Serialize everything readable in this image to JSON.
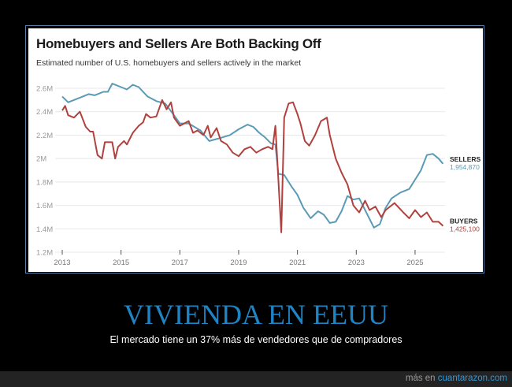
{
  "chart_data": {
    "type": "line",
    "title": "Homebuyers and Sellers Are Both Backing Off",
    "subtitle": "Estimated number of U.S. homebuyers and sellers actively in the market",
    "xlabel": "",
    "ylabel": "",
    "xlim": [
      2013,
      2026
    ],
    "ylim": [
      1200000,
      2600000
    ],
    "x_ticks": [
      2013,
      2015,
      2017,
      2019,
      2021,
      2023,
      2025
    ],
    "x_tick_labels": [
      "2013",
      "2015",
      "2017",
      "2019",
      "2021",
      "2023",
      "2025"
    ],
    "y_ticks": [
      1200000,
      1400000,
      1600000,
      1800000,
      2000000,
      2200000,
      2400000,
      2600000
    ],
    "y_tick_labels": [
      "1.2M",
      "1.4M",
      "1.6M",
      "1.8M",
      "2M",
      "2.2M",
      "2.4M",
      "2.6M"
    ],
    "grid": true,
    "series": [
      {
        "name": "SELLERS",
        "end_label": "1,954,870",
        "color": "#5b9ab5",
        "points": [
          [
            2013.0,
            2.53
          ],
          [
            2013.2,
            2.48
          ],
          [
            2013.5,
            2.51
          ],
          [
            2013.9,
            2.55
          ],
          [
            2014.1,
            2.54
          ],
          [
            2014.4,
            2.57
          ],
          [
            2014.55,
            2.57
          ],
          [
            2014.7,
            2.64
          ],
          [
            2015.0,
            2.61
          ],
          [
            2015.2,
            2.59
          ],
          [
            2015.4,
            2.63
          ],
          [
            2015.6,
            2.61
          ],
          [
            2015.9,
            2.53
          ],
          [
            2016.2,
            2.49
          ],
          [
            2016.5,
            2.47
          ],
          [
            2016.8,
            2.37
          ],
          [
            2017.0,
            2.3
          ],
          [
            2017.3,
            2.3
          ],
          [
            2017.7,
            2.24
          ],
          [
            2018.0,
            2.15
          ],
          [
            2018.3,
            2.17
          ],
          [
            2018.7,
            2.2
          ],
          [
            2019.0,
            2.25
          ],
          [
            2019.3,
            2.29
          ],
          [
            2019.5,
            2.27
          ],
          [
            2019.7,
            2.22
          ],
          [
            2019.9,
            2.18
          ],
          [
            2020.1,
            2.13
          ],
          [
            2020.25,
            2.12
          ],
          [
            2020.35,
            1.87
          ],
          [
            2020.55,
            1.86
          ],
          [
            2020.8,
            1.76
          ],
          [
            2021.0,
            1.69
          ],
          [
            2021.2,
            1.58
          ],
          [
            2021.45,
            1.49
          ],
          [
            2021.7,
            1.55
          ],
          [
            2021.9,
            1.52
          ],
          [
            2022.1,
            1.45
          ],
          [
            2022.3,
            1.46
          ],
          [
            2022.5,
            1.55
          ],
          [
            2022.7,
            1.68
          ],
          [
            2022.9,
            1.65
          ],
          [
            2023.1,
            1.66
          ],
          [
            2023.3,
            1.56
          ],
          [
            2023.6,
            1.41
          ],
          [
            2023.8,
            1.44
          ],
          [
            2024.0,
            1.58
          ],
          [
            2024.2,
            1.66
          ],
          [
            2024.5,
            1.71
          ],
          [
            2024.8,
            1.74
          ],
          [
            2025.0,
            1.82
          ],
          [
            2025.2,
            1.9
          ],
          [
            2025.4,
            2.03
          ],
          [
            2025.6,
            2.04
          ],
          [
            2025.8,
            2.0
          ],
          [
            2025.95,
            1.955
          ]
        ]
      },
      {
        "name": "BUYERS",
        "end_label": "1,425,100",
        "color": "#b0413e",
        "points": [
          [
            2013.0,
            2.41
          ],
          [
            2013.1,
            2.45
          ],
          [
            2013.2,
            2.37
          ],
          [
            2013.4,
            2.35
          ],
          [
            2013.6,
            2.4
          ],
          [
            2013.8,
            2.27
          ],
          [
            2013.95,
            2.23
          ],
          [
            2014.05,
            2.23
          ],
          [
            2014.2,
            2.03
          ],
          [
            2014.35,
            2.0
          ],
          [
            2014.45,
            2.14
          ],
          [
            2014.7,
            2.14
          ],
          [
            2014.8,
            2.0
          ],
          [
            2014.9,
            2.1
          ],
          [
            2015.1,
            2.15
          ],
          [
            2015.2,
            2.12
          ],
          [
            2015.4,
            2.22
          ],
          [
            2015.6,
            2.28
          ],
          [
            2015.75,
            2.31
          ],
          [
            2015.85,
            2.38
          ],
          [
            2016.0,
            2.35
          ],
          [
            2016.2,
            2.36
          ],
          [
            2016.4,
            2.5
          ],
          [
            2016.55,
            2.42
          ],
          [
            2016.7,
            2.48
          ],
          [
            2016.8,
            2.35
          ],
          [
            2017.0,
            2.28
          ],
          [
            2017.15,
            2.3
          ],
          [
            2017.3,
            2.32
          ],
          [
            2017.45,
            2.22
          ],
          [
            2017.6,
            2.24
          ],
          [
            2017.8,
            2.2
          ],
          [
            2017.95,
            2.28
          ],
          [
            2018.05,
            2.18
          ],
          [
            2018.25,
            2.26
          ],
          [
            2018.4,
            2.15
          ],
          [
            2018.6,
            2.12
          ],
          [
            2018.8,
            2.05
          ],
          [
            2019.0,
            2.02
          ],
          [
            2019.2,
            2.08
          ],
          [
            2019.4,
            2.1
          ],
          [
            2019.6,
            2.05
          ],
          [
            2019.8,
            2.08
          ],
          [
            2020.0,
            2.1
          ],
          [
            2020.15,
            2.08
          ],
          [
            2020.25,
            2.28
          ],
          [
            2020.45,
            1.37
          ],
          [
            2020.55,
            2.35
          ],
          [
            2020.7,
            2.47
          ],
          [
            2020.85,
            2.48
          ],
          [
            2021.0,
            2.38
          ],
          [
            2021.1,
            2.3
          ],
          [
            2021.25,
            2.15
          ],
          [
            2021.4,
            2.11
          ],
          [
            2021.6,
            2.2
          ],
          [
            2021.8,
            2.32
          ],
          [
            2022.0,
            2.35
          ],
          [
            2022.1,
            2.2
          ],
          [
            2022.3,
            2.0
          ],
          [
            2022.5,
            1.88
          ],
          [
            2022.7,
            1.78
          ],
          [
            2022.9,
            1.6
          ],
          [
            2023.1,
            1.54
          ],
          [
            2023.3,
            1.64
          ],
          [
            2023.45,
            1.56
          ],
          [
            2023.65,
            1.59
          ],
          [
            2023.85,
            1.5
          ],
          [
            2024.0,
            1.56
          ],
          [
            2024.3,
            1.62
          ],
          [
            2024.6,
            1.54
          ],
          [
            2024.8,
            1.49
          ],
          [
            2025.0,
            1.56
          ],
          [
            2025.2,
            1.5
          ],
          [
            2025.4,
            1.54
          ],
          [
            2025.6,
            1.46
          ],
          [
            2025.8,
            1.46
          ],
          [
            2025.95,
            1.425
          ]
        ]
      }
    ]
  },
  "headline": "VIVIENDA EN EEUU",
  "caption": "El mercado tiene un 37% más de vendedores que de compradores",
  "footer": {
    "prefix": "más en",
    "link": "cuantarazon.com"
  },
  "colors": {
    "headline": "#1f84c4",
    "link": "#2a9be0"
  }
}
